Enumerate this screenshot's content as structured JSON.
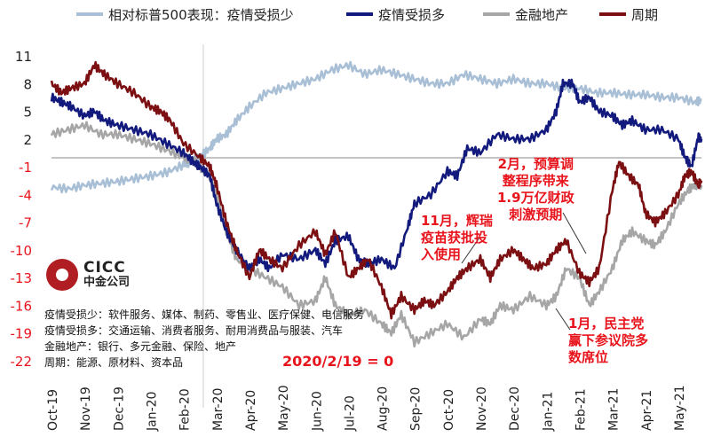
{
  "legend": {
    "s0": "相对标普500表现：疫情受损少",
    "s1": "疫情受损多",
    "s2": "金融地产",
    "s3": "周期"
  },
  "annotations": {
    "feb_line1": "2月，预算调",
    "feb_line2": "整程序带来",
    "feb_line3": "1.9万亿财政",
    "feb_line4": "刺激预期",
    "nov_line1": "11月，辉瑞",
    "nov_line2": "疫苗获批投",
    "nov_line3": "入使用",
    "jan_line1": "1月，民主党",
    "jan_line2": "赢下参议院多",
    "jan_line3": "数席位",
    "zero_note": "2020/2/19 = 0"
  },
  "notes": {
    "n1": "疫情受损少：软件服务、媒体、制药、零售业、医疗保健、电信服务",
    "n2": "疫情受损多：交通运输、消费者服务、耐用消费品与服装、汽车",
    "n3": "金融地产：银行、多元金融、保险、地产",
    "n4": "周期：能源、原材料、资本品"
  },
  "logo": {
    "en": "CICC",
    "cn": "中金公司"
  },
  "chart_data": {
    "type": "line",
    "ylim": [
      -22,
      11
    ],
    "yticks": [
      11,
      8,
      5,
      2,
      -1,
      -4,
      -7,
      -10,
      -13,
      -16,
      -19,
      -22
    ],
    "xtick_labels": [
      "Oct-19",
      "Nov-19",
      "Dec-19",
      "Jan-20",
      "Feb-20",
      "Mar-20",
      "Apr-20",
      "May-20",
      "Jun-20",
      "Jul-20",
      "Aug-20",
      "Sep-20",
      "Oct-20",
      "Nov-20",
      "Dec-20",
      "Jan-21",
      "Feb-21",
      "Mar-21",
      "Apr-21",
      "May-21"
    ],
    "x_range_months": [
      0,
      19.7
    ],
    "colors": {
      "s0": "#a9bfd6",
      "s1": "#131a7d",
      "s2": "#a6a6a6",
      "s3": "#7b0f12",
      "negative_axis": "#e8141c",
      "annotation": "#e8141c"
    },
    "series": [
      {
        "name": "相对标普500表现：疫情受损少",
        "key": "s0",
        "points": [
          [
            0,
            -3.2
          ],
          [
            0.5,
            -3.4
          ],
          [
            1,
            -3
          ],
          [
            1.5,
            -2.8
          ],
          [
            2,
            -2.6
          ],
          [
            2.5,
            -2.3
          ],
          [
            3,
            -2
          ],
          [
            3.5,
            -1.6
          ],
          [
            4,
            -0.8
          ],
          [
            4.2,
            -0.5
          ],
          [
            4.5,
            0.1
          ],
          [
            4.8,
            1
          ],
          [
            5,
            2
          ],
          [
            5.3,
            2.5
          ],
          [
            5.6,
            4
          ],
          [
            6,
            5.5
          ],
          [
            6.5,
            7
          ],
          [
            7,
            7.5
          ],
          [
            7.5,
            8
          ],
          [
            8,
            8.5
          ],
          [
            8.5,
            9.5
          ],
          [
            9,
            10
          ],
          [
            9.5,
            9
          ],
          [
            10,
            9.5
          ],
          [
            10.5,
            9
          ],
          [
            11,
            8.5
          ],
          [
            11.5,
            8
          ],
          [
            12,
            8
          ],
          [
            12.5,
            9
          ],
          [
            13,
            8.5
          ],
          [
            13.5,
            8
          ],
          [
            14,
            8.5
          ],
          [
            14.5,
            8
          ],
          [
            15,
            8
          ],
          [
            15.5,
            7.5
          ],
          [
            16,
            7.5
          ],
          [
            16.5,
            7
          ],
          [
            17,
            7
          ],
          [
            17.5,
            6.8
          ],
          [
            18,
            6.8
          ],
          [
            18.5,
            6.5
          ],
          [
            19,
            6.5
          ],
          [
            19.5,
            6
          ],
          [
            19.7,
            6.2
          ]
        ]
      },
      {
        "name": "疫情受损多",
        "key": "s1",
        "points": [
          [
            0,
            6.5
          ],
          [
            0.3,
            6
          ],
          [
            0.6,
            5.5
          ],
          [
            1,
            4.5
          ],
          [
            1.3,
            5
          ],
          [
            1.6,
            4
          ],
          [
            2,
            3.5
          ],
          [
            2.5,
            3
          ],
          [
            3,
            2.5
          ],
          [
            3.5,
            1.5
          ],
          [
            4,
            0.5
          ],
          [
            4.3,
            -0.5
          ],
          [
            4.5,
            -1
          ],
          [
            4.8,
            -2
          ],
          [
            5,
            -5
          ],
          [
            5.3,
            -8
          ],
          [
            5.6,
            -10
          ],
          [
            6,
            -12
          ],
          [
            6.3,
            -11
          ],
          [
            6.6,
            -12
          ],
          [
            7,
            -10.5
          ],
          [
            7.5,
            -11
          ],
          [
            8,
            -10
          ],
          [
            8.3,
            -11.5
          ],
          [
            8.6,
            -9
          ],
          [
            9,
            -8.5
          ],
          [
            9.3,
            -11
          ],
          [
            9.6,
            -11.5
          ],
          [
            10,
            -11
          ],
          [
            10.4,
            -12
          ],
          [
            10.8,
            -7.5
          ],
          [
            11,
            -5
          ],
          [
            11.5,
            -4
          ],
          [
            12,
            -1.5
          ],
          [
            12.3,
            -2
          ],
          [
            12.6,
            1
          ],
          [
            13,
            0.5
          ],
          [
            13.5,
            2.5
          ],
          [
            14,
            2
          ],
          [
            14.5,
            2
          ],
          [
            15,
            3
          ],
          [
            15.3,
            5
          ],
          [
            15.5,
            8
          ],
          [
            15.8,
            8
          ],
          [
            16,
            6
          ],
          [
            16.3,
            6.5
          ],
          [
            16.6,
            5
          ],
          [
            17,
            4.5
          ],
          [
            17.3,
            3.5
          ],
          [
            17.6,
            4
          ],
          [
            18,
            3
          ],
          [
            18.5,
            3
          ],
          [
            19,
            2
          ],
          [
            19.2,
            0
          ],
          [
            19.4,
            -1
          ],
          [
            19.6,
            2.2
          ],
          [
            19.7,
            2
          ]
        ]
      },
      {
        "name": "金融地产",
        "key": "s2",
        "points": [
          [
            0,
            2.5
          ],
          [
            0.5,
            3
          ],
          [
            1,
            3.5
          ],
          [
            1.5,
            2.5
          ],
          [
            2,
            2.5
          ],
          [
            2.5,
            2
          ],
          [
            3,
            1.5
          ],
          [
            3.5,
            0.8
          ],
          [
            4,
            0
          ],
          [
            4.3,
            -0.3
          ],
          [
            4.5,
            -1
          ],
          [
            4.8,
            -2
          ],
          [
            5,
            -4
          ],
          [
            5.3,
            -8
          ],
          [
            5.6,
            -11
          ],
          [
            6,
            -12
          ],
          [
            6.5,
            -13
          ],
          [
            7,
            -14
          ],
          [
            7.5,
            -16
          ],
          [
            8,
            -15.5
          ],
          [
            8.3,
            -13
          ],
          [
            8.6,
            -16
          ],
          [
            9,
            -17
          ],
          [
            9.5,
            -16.5
          ],
          [
            10,
            -18
          ],
          [
            10.3,
            -19
          ],
          [
            10.6,
            -17
          ],
          [
            11,
            -20
          ],
          [
            11.5,
            -19
          ],
          [
            12,
            -18
          ],
          [
            12.5,
            -19.5
          ],
          [
            13,
            -17.5
          ],
          [
            13.3,
            -18
          ],
          [
            13.6,
            -16
          ],
          [
            14,
            -16.5
          ],
          [
            14.5,
            -15
          ],
          [
            15,
            -16
          ],
          [
            15.3,
            -15
          ],
          [
            15.6,
            -12
          ],
          [
            16,
            -13
          ],
          [
            16.3,
            -16
          ],
          [
            16.6,
            -14.5
          ],
          [
            17,
            -12
          ],
          [
            17.3,
            -9
          ],
          [
            17.6,
            -8
          ],
          [
            18,
            -9
          ],
          [
            18.3,
            -9.5
          ],
          [
            18.6,
            -8
          ],
          [
            19,
            -5
          ],
          [
            19.3,
            -3.5
          ],
          [
            19.5,
            -3
          ],
          [
            19.7,
            -3
          ]
        ]
      },
      {
        "name": "周期",
        "key": "s3",
        "points": [
          [
            0,
            8
          ],
          [
            0.3,
            7
          ],
          [
            0.6,
            7.5
          ],
          [
            1,
            8
          ],
          [
            1.3,
            10
          ],
          [
            1.6,
            9
          ],
          [
            2,
            8
          ],
          [
            2.5,
            7
          ],
          [
            3,
            5.5
          ],
          [
            3.3,
            5
          ],
          [
            3.6,
            4
          ],
          [
            4,
            1.5
          ],
          [
            4.5,
            0
          ],
          [
            4.8,
            -1
          ],
          [
            5,
            -3
          ],
          [
            5.3,
            -7
          ],
          [
            5.6,
            -10
          ],
          [
            6,
            -13
          ],
          [
            6.3,
            -10
          ],
          [
            6.6,
            -11
          ],
          [
            7,
            -12
          ],
          [
            7.5,
            -9.5
          ],
          [
            8,
            -8
          ],
          [
            8.3,
            -10.5
          ],
          [
            8.6,
            -8
          ],
          [
            9,
            -13
          ],
          [
            9.3,
            -12
          ],
          [
            9.6,
            -11
          ],
          [
            10,
            -14
          ],
          [
            10.3,
            -17
          ],
          [
            10.6,
            -15
          ],
          [
            11,
            -16.5
          ],
          [
            11.3,
            -15.5
          ],
          [
            11.6,
            -16
          ],
          [
            12,
            -14.5
          ],
          [
            12.3,
            -13
          ],
          [
            12.6,
            -12
          ],
          [
            13,
            -11
          ],
          [
            13.3,
            -13
          ],
          [
            13.6,
            -11
          ],
          [
            14,
            -10
          ],
          [
            14.3,
            -11
          ],
          [
            14.6,
            -12
          ],
          [
            15,
            -11.5
          ],
          [
            15.3,
            -10
          ],
          [
            15.6,
            -9
          ],
          [
            16,
            -12.5
          ],
          [
            16.3,
            -13.5
          ],
          [
            16.6,
            -12
          ],
          [
            17,
            -3.5
          ],
          [
            17.2,
            -0.5
          ],
          [
            17.5,
            -2
          ],
          [
            17.8,
            -3
          ],
          [
            18,
            -6
          ],
          [
            18.3,
            -7
          ],
          [
            18.6,
            -6
          ],
          [
            19,
            -4
          ],
          [
            19.2,
            -2
          ],
          [
            19.4,
            -1.5
          ],
          [
            19.6,
            -3
          ],
          [
            19.7,
            -2.5
          ]
        ]
      }
    ]
  }
}
